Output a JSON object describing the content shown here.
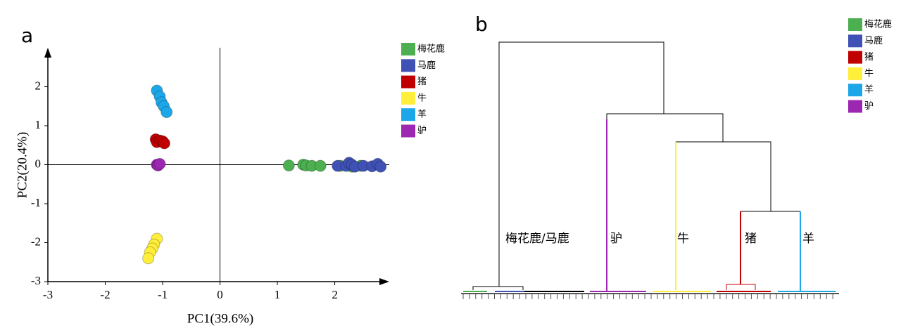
{
  "chart_data": [
    {
      "type": "scatter",
      "panel": "a",
      "x_label": "PC1(39.6%)",
      "y_label": "PC2(20.4%)",
      "xlim": [
        -3,
        2.95
      ],
      "ylim": [
        -3,
        3
      ],
      "xticks": [
        -3,
        -2,
        -1,
        0,
        1,
        2
      ],
      "yticks": [
        -3,
        -2,
        -1,
        0,
        1,
        2
      ],
      "series": [
        {
          "name": "梅花鹿",
          "color": "#4caf50",
          "x": [
            1.2,
            1.45,
            1.5,
            1.6,
            1.75,
            2.1,
            2.3,
            2.45
          ],
          "values": [
            -0.02,
            0,
            -0.02,
            -0.03,
            -0.03,
            -0.03,
            -0.05,
            -0.03
          ]
        },
        {
          "name": "马鹿",
          "color": "#3f51b5",
          "x": [
            2.05,
            2.2,
            2.25,
            2.3,
            2.35,
            2.5,
            2.65,
            2.75,
            2.8
          ],
          "values": [
            -0.03,
            -0.03,
            0.05,
            0,
            -0.05,
            -0.03,
            -0.04,
            0.02,
            -0.05
          ]
        },
        {
          "name": "猪",
          "color": "#c00000",
          "x": [
            -1.12,
            -1.1,
            -1.05,
            -1.0,
            -0.97
          ],
          "values": [
            0.65,
            0.58,
            0.62,
            0.6,
            0.55
          ]
        },
        {
          "name": "牛",
          "color": "#ffee3a",
          "x": [
            -1.1,
            -1.15,
            -1.18,
            -1.22,
            -1.25
          ],
          "values": [
            -1.9,
            -2.05,
            -2.15,
            -2.25,
            -2.4
          ]
        },
        {
          "name": "羊",
          "color": "#1ea7e8",
          "x": [
            -1.1,
            -1.05,
            -1.02,
            -0.98,
            -0.93
          ],
          "values": [
            1.9,
            1.75,
            1.6,
            1.5,
            1.35
          ]
        },
        {
          "name": "驴",
          "color": "#9c27b0",
          "x": [
            -1.1,
            -1.08,
            -1.05
          ],
          "values": [
            0,
            -0.02,
            0.02
          ]
        }
      ]
    },
    {
      "type": "dendrogram",
      "panel": "b",
      "series": [
        {
          "name": "梅花鹿",
          "color": "#4caf50"
        },
        {
          "name": "马鹿",
          "color": "#3f51b5"
        },
        {
          "name": "猪",
          "color": "#c00000"
        },
        {
          "name": "牛",
          "color": "#ffee3a"
        },
        {
          "name": "羊",
          "color": "#1ea7e8"
        },
        {
          "name": "驴",
          "color": "#9c27b0"
        }
      ],
      "labels": [
        "梅花鹿/马鹿",
        "驴",
        "牛",
        "猪",
        "羊"
      ]
    }
  ]
}
